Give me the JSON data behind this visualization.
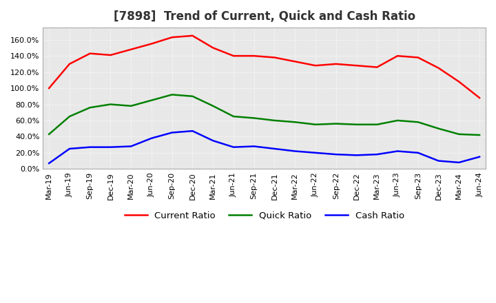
{
  "title": "[7898]  Trend of Current, Quick and Cash Ratio",
  "x_labels": [
    "Mar-19",
    "Jun-19",
    "Sep-19",
    "Dec-19",
    "Mar-20",
    "Jun-20",
    "Sep-20",
    "Dec-20",
    "Mar-21",
    "Jun-21",
    "Sep-21",
    "Dec-21",
    "Mar-22",
    "Jun-22",
    "Sep-22",
    "Dec-22",
    "Mar-23",
    "Jun-23",
    "Sep-23",
    "Dec-23",
    "Mar-24",
    "Jun-24"
  ],
  "current_ratio": [
    100.0,
    130.0,
    143.0,
    141.0,
    148.0,
    155.0,
    163.0,
    165.0,
    150.0,
    140.0,
    140.0,
    138.0,
    133.0,
    128.0,
    130.0,
    128.0,
    126.0,
    140.0,
    138.0,
    125.0,
    108.0,
    88.0
  ],
  "quick_ratio": [
    43.0,
    65.0,
    76.0,
    80.0,
    78.0,
    85.0,
    92.0,
    90.0,
    78.0,
    65.0,
    63.0,
    60.0,
    58.0,
    55.0,
    56.0,
    55.0,
    55.0,
    60.0,
    58.0,
    50.0,
    43.0,
    42.0
  ],
  "cash_ratio": [
    7.0,
    25.0,
    27.0,
    27.0,
    28.0,
    38.0,
    45.0,
    47.0,
    35.0,
    27.0,
    28.0,
    25.0,
    22.0,
    20.0,
    18.0,
    17.0,
    18.0,
    22.0,
    20.0,
    10.0,
    8.0,
    15.0
  ],
  "ylim": [
    0,
    175
  ],
  "yticks": [
    0,
    20,
    40,
    60,
    80,
    100,
    120,
    140,
    160
  ],
  "current_color": "#ff0000",
  "quick_color": "#008000",
  "cash_color": "#0000ff",
  "background_color": "#ffffff",
  "plot_bg_color": "#e8e8e8",
  "grid_color": "#ffffff",
  "title_fontsize": 12,
  "legend_fontsize": 9.5,
  "tick_fontsize": 8
}
